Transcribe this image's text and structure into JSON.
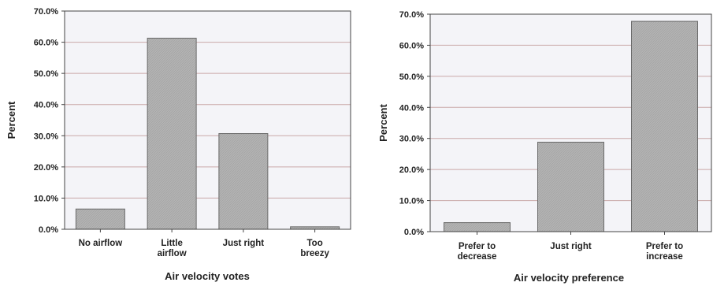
{
  "chart_data": [
    {
      "type": "bar",
      "categories": [
        [
          "No airflow"
        ],
        [
          "Little",
          "airflow"
        ],
        [
          "Just right"
        ],
        [
          "Too",
          "breezy"
        ]
      ],
      "values": [
        6.5,
        61.3,
        30.7,
        0.8
      ],
      "xlabel": "Air velocity votes",
      "ylabel": "Percent",
      "ylim": [
        0,
        70
      ],
      "yticks": [
        "0.0%",
        "10.0%",
        "20.0%",
        "30.0%",
        "40.0%",
        "50.0%",
        "60.0%",
        "70.0%"
      ],
      "grid": true
    },
    {
      "type": "bar",
      "categories": [
        [
          "Prefer to",
          "decrease"
        ],
        [
          "Just right"
        ],
        [
          "Prefer to",
          "increase"
        ]
      ],
      "values": [
        2.9,
        28.8,
        67.7
      ],
      "xlabel": "Air velocity preference",
      "ylabel": "Percent",
      "ylim": [
        0,
        70
      ],
      "yticks": [
        "0.0%",
        "10.0%",
        "20.0%",
        "30.0%",
        "40.0%",
        "50.0%",
        "60.0%",
        "70.0%"
      ],
      "grid": true
    }
  ],
  "colors": {
    "plot_background": "#f4f4f8",
    "bar_fill": "#b0b0b0",
    "bar_stroke": "#6a6a6a",
    "gridline": "#c9a8a8",
    "frame": "#444444"
  }
}
